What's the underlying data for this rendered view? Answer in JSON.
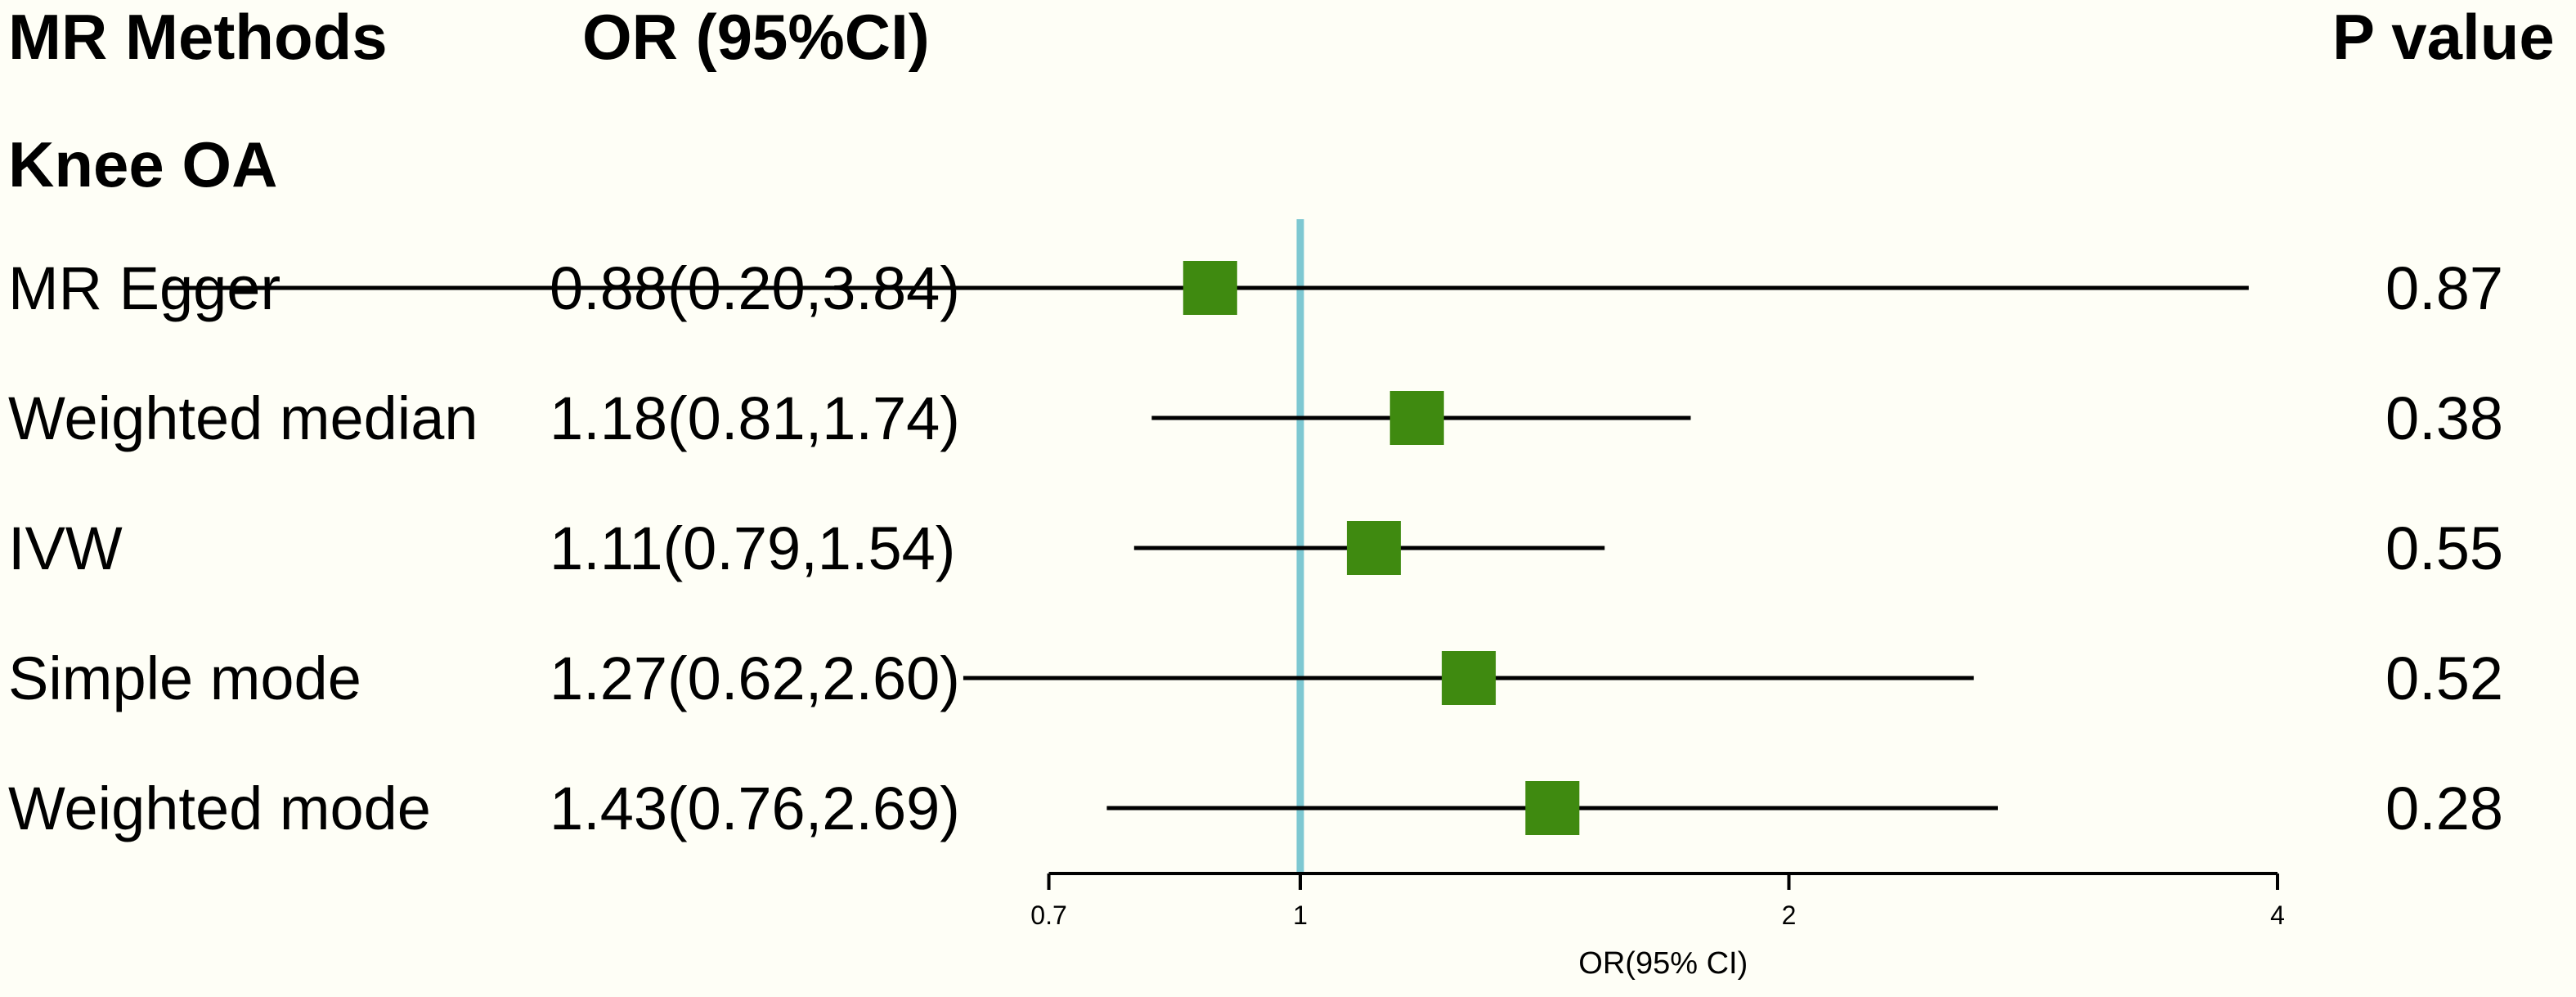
{
  "headers": {
    "methods": "MR Methods",
    "or": "OR (95%CI)",
    "pvalue": "P value"
  },
  "group_label": "Knee OA",
  "chart_data": {
    "type": "forest",
    "xlabel": "OR(95% CI)",
    "x_scale": "log2",
    "xlim": [
      0.7,
      4
    ],
    "x_ticks": [
      0.7,
      1,
      2,
      4
    ],
    "x_tick_labels": [
      "0.7",
      "1",
      "2",
      "4"
    ],
    "reference_line": 1,
    "reference_color": "#7ec8d2",
    "marker_color": "#3f8a10",
    "rows": [
      {
        "method": "MR Egger",
        "or_text": "0.88(0.20,3.84)",
        "or": 0.88,
        "lo": 0.2,
        "hi": 3.84,
        "p": "0.87"
      },
      {
        "method": "Weighted median",
        "or_text": "1.18(0.81,1.74)",
        "or": 1.18,
        "lo": 0.81,
        "hi": 1.74,
        "p": "0.38"
      },
      {
        "method": "IVW",
        "or_text": "1.11(0.79,1.54)",
        "or": 1.11,
        "lo": 0.79,
        "hi": 1.54,
        "p": "0.55"
      },
      {
        "method": "Simple mode",
        "or_text": "1.27(0.62,2.60)",
        "or": 1.27,
        "lo": 0.62,
        "hi": 2.6,
        "p": "0.52"
      },
      {
        "method": "Weighted mode",
        "or_text": "1.43(0.76,2.69)",
        "or": 1.43,
        "lo": 0.76,
        "hi": 2.69,
        "p": "0.28"
      }
    ]
  }
}
